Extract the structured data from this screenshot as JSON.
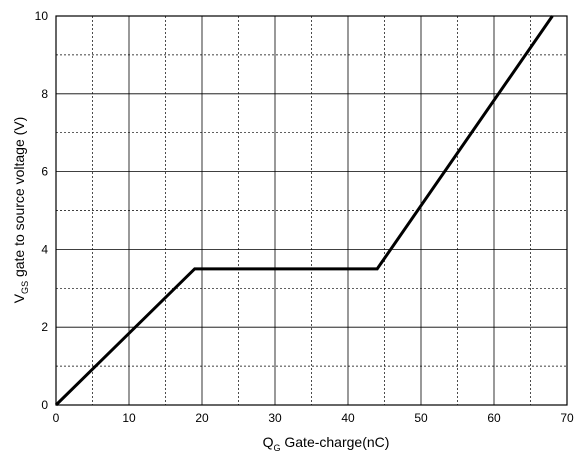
{
  "chart_data": {
    "type": "line",
    "xlabel_main": "Q",
    "xlabel_sub": "G",
    "xlabel_rest": " Gate-charge(nC)",
    "ylabel_main": "V",
    "ylabel_sub": "GS",
    "ylabel_rest": " gate to source voltage (V)",
    "xlim": [
      0,
      70
    ],
    "ylim": [
      0,
      10
    ],
    "x_major_ticks": [
      0,
      10,
      20,
      30,
      40,
      50,
      60,
      70
    ],
    "x_minor_ticks": [
      5,
      15,
      25,
      35,
      45,
      55,
      65
    ],
    "y_major_ticks": [
      0,
      2,
      4,
      6,
      8,
      10
    ],
    "y_minor_ticks": [
      1,
      3,
      5,
      7,
      9
    ],
    "grid": true,
    "series": [
      {
        "x": [
          0,
          19,
          44,
          68
        ],
        "y": [
          0,
          3.5,
          3.5,
          10
        ]
      }
    ]
  }
}
